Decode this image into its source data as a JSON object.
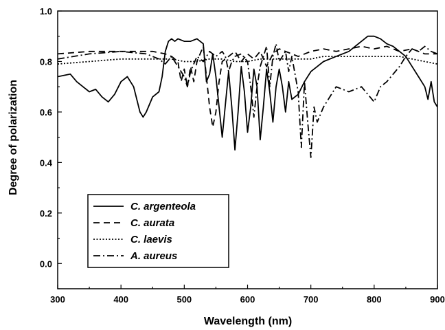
{
  "chart_data": {
    "type": "line",
    "title": "",
    "xlabel": "Wavelength (nm)",
    "ylabel": "Degree of polarization",
    "xlim": [
      300,
      900
    ],
    "ylim": [
      -0.1,
      1.0
    ],
    "xticks": [
      300,
      400,
      500,
      600,
      700,
      800,
      900
    ],
    "xtick_labels": [
      "300",
      "400",
      "500",
      "600",
      "700",
      "800",
      "900"
    ],
    "yticks": [
      0.0,
      0.2,
      0.4,
      0.6,
      0.8,
      1.0
    ],
    "ytick_labels": [
      "0.0",
      "0.2",
      "0.4",
      "0.6",
      "0.8",
      "1.0"
    ],
    "grid": false,
    "legend_position": "lower-left",
    "series": [
      {
        "name": "C. argenteola",
        "style": "solid",
        "x": [
          300,
          320,
          330,
          340,
          350,
          360,
          370,
          380,
          390,
          400,
          410,
          420,
          430,
          435,
          440,
          450,
          460,
          465,
          470,
          475,
          480,
          485,
          490,
          500,
          510,
          520,
          530,
          535,
          540,
          545,
          550,
          555,
          560,
          565,
          570,
          575,
          580,
          585,
          590,
          595,
          600,
          605,
          610,
          615,
          620,
          625,
          630,
          635,
          640,
          645,
          650,
          655,
          660,
          665,
          670,
          680,
          690,
          700,
          710,
          720,
          740,
          760,
          780,
          790,
          800,
          810,
          820,
          830,
          840,
          850,
          860,
          870,
          880,
          885,
          890,
          895,
          900
        ],
        "values": [
          0.74,
          0.75,
          0.72,
          0.7,
          0.68,
          0.69,
          0.66,
          0.64,
          0.67,
          0.72,
          0.74,
          0.7,
          0.6,
          0.58,
          0.6,
          0.66,
          0.68,
          0.74,
          0.84,
          0.88,
          0.89,
          0.88,
          0.89,
          0.88,
          0.88,
          0.89,
          0.87,
          0.72,
          0.75,
          0.83,
          0.74,
          0.62,
          0.5,
          0.63,
          0.76,
          0.62,
          0.45,
          0.6,
          0.78,
          0.68,
          0.52,
          0.62,
          0.77,
          0.7,
          0.49,
          0.62,
          0.77,
          0.68,
          0.56,
          0.7,
          0.77,
          0.7,
          0.6,
          0.72,
          0.65,
          0.67,
          0.72,
          0.76,
          0.78,
          0.8,
          0.82,
          0.84,
          0.88,
          0.9,
          0.9,
          0.89,
          0.87,
          0.86,
          0.84,
          0.82,
          0.78,
          0.74,
          0.7,
          0.65,
          0.72,
          0.64,
          0.62
        ]
      },
      {
        "name": "C. aurata",
        "style": "dashed",
        "x": [
          300,
          350,
          400,
          450,
          470,
          480,
          490,
          495,
          500,
          505,
          510,
          515,
          520,
          525,
          530,
          535,
          540,
          545,
          550,
          555,
          560,
          570,
          580,
          590,
          600,
          610,
          620,
          630,
          640,
          650,
          660,
          670,
          680,
          700,
          720,
          740,
          760,
          780,
          800,
          820,
          840,
          860,
          880,
          900
        ],
        "values": [
          0.83,
          0.84,
          0.84,
          0.84,
          0.83,
          0.82,
          0.8,
          0.72,
          0.77,
          0.7,
          0.78,
          0.72,
          0.8,
          0.83,
          0.86,
          0.74,
          0.62,
          0.54,
          0.6,
          0.72,
          0.8,
          0.82,
          0.84,
          0.8,
          0.83,
          0.81,
          0.84,
          0.78,
          0.83,
          0.85,
          0.84,
          0.83,
          0.82,
          0.84,
          0.85,
          0.84,
          0.85,
          0.86,
          0.85,
          0.86,
          0.84,
          0.85,
          0.83,
          0.83
        ]
      },
      {
        "name": "C. laevis",
        "style": "dotted",
        "x": [
          300,
          350,
          400,
          450,
          480,
          500,
          520,
          540,
          560,
          580,
          600,
          620,
          640,
          660,
          680,
          700,
          720,
          740,
          760,
          780,
          800,
          820,
          840,
          860,
          880,
          900
        ],
        "values": [
          0.79,
          0.8,
          0.81,
          0.81,
          0.81,
          0.8,
          0.8,
          0.81,
          0.81,
          0.8,
          0.8,
          0.81,
          0.81,
          0.81,
          0.81,
          0.81,
          0.82,
          0.82,
          0.82,
          0.82,
          0.82,
          0.82,
          0.82,
          0.81,
          0.8,
          0.79
        ]
      },
      {
        "name": "A. aureus",
        "style": "dash-dot",
        "x": [
          300,
          350,
          400,
          440,
          460,
          470,
          480,
          490,
          500,
          505,
          510,
          520,
          530,
          540,
          550,
          560,
          565,
          570,
          575,
          580,
          590,
          600,
          605,
          610,
          615,
          620,
          630,
          635,
          640,
          645,
          650,
          660,
          665,
          670,
          680,
          685,
          690,
          695,
          700,
          705,
          710,
          720,
          730,
          740,
          760,
          780,
          790,
          800,
          810,
          820,
          830,
          840,
          850,
          860,
          870,
          880,
          890,
          900
        ],
        "values": [
          0.81,
          0.83,
          0.84,
          0.83,
          0.81,
          0.79,
          0.82,
          0.78,
          0.74,
          0.7,
          0.76,
          0.82,
          0.8,
          0.84,
          0.82,
          0.84,
          0.82,
          0.76,
          0.8,
          0.82,
          0.83,
          0.8,
          0.7,
          0.58,
          0.7,
          0.78,
          0.86,
          0.7,
          0.82,
          0.87,
          0.8,
          0.84,
          0.76,
          0.82,
          0.68,
          0.46,
          0.72,
          0.56,
          0.42,
          0.62,
          0.56,
          0.62,
          0.66,
          0.7,
          0.68,
          0.7,
          0.67,
          0.64,
          0.7,
          0.72,
          0.75,
          0.78,
          0.82,
          0.85,
          0.84,
          0.86,
          0.84,
          0.83
        ]
      }
    ]
  }
}
